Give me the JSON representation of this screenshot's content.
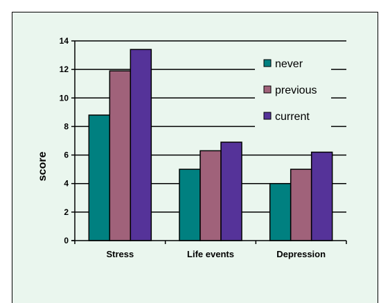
{
  "chart_data": {
    "type": "bar",
    "categories": [
      "Stress",
      "Life events",
      "Depression"
    ],
    "series": [
      {
        "name": "never",
        "color": "#008080",
        "values": [
          8.8,
          5.0,
          4.0
        ]
      },
      {
        "name": "previous",
        "color": "#a0627a",
        "values": [
          11.9,
          6.3,
          5.0
        ]
      },
      {
        "name": "current",
        "color": "#553399",
        "values": [
          13.4,
          6.9,
          6.2
        ]
      }
    ],
    "ylabel": "score",
    "xlabel": "",
    "ylim": [
      0,
      14
    ],
    "yticks": [
      "0",
      "2",
      "4",
      "6",
      "8",
      "10",
      "12",
      "14"
    ],
    "grid": true,
    "legend_position": "top-right",
    "colors": {
      "background": "#eaf6ee",
      "frame": "#000000"
    }
  }
}
